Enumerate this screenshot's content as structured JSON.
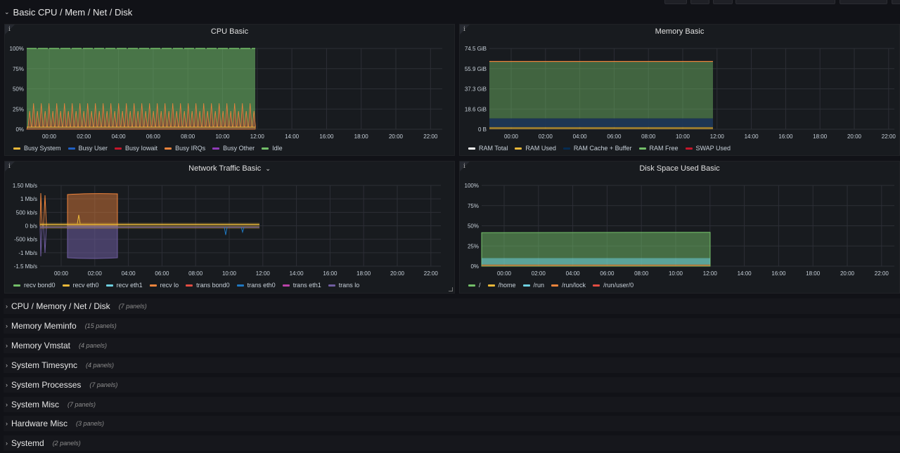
{
  "section": {
    "title": "Basic CPU / Mem / Net / Disk"
  },
  "x_ticks": [
    "00:00",
    "02:00",
    "04:00",
    "06:00",
    "08:00",
    "10:00",
    "12:00",
    "14:00",
    "16:00",
    "18:00",
    "20:00",
    "22:00"
  ],
  "panels": {
    "cpu": {
      "title": "CPU Basic",
      "y_ticks": [
        "100%",
        "75%",
        "50%",
        "25%",
        "0%"
      ],
      "legend": [
        {
          "label": "Busy System",
          "color": "#eab839"
        },
        {
          "label": "Busy User",
          "color": "#1f60c4"
        },
        {
          "label": "Busy Iowait",
          "color": "#c4162a"
        },
        {
          "label": "Busy IRQs",
          "color": "#ef843c"
        },
        {
          "label": "Busy Other",
          "color": "#8f3bb8"
        },
        {
          "label": "Idle",
          "color": "#73bf69"
        }
      ]
    },
    "memory": {
      "title": "Memory Basic",
      "y_ticks": [
        "74.5 GiB",
        "55.9 GiB",
        "37.3 GiB",
        "18.6 GiB",
        "0 B"
      ],
      "legend": [
        {
          "label": "RAM Total",
          "color": "#ffffff"
        },
        {
          "label": "RAM Used",
          "color": "#eab839"
        },
        {
          "label": "RAM Cache + Buffer",
          "color": "#052b51"
        },
        {
          "label": "RAM Free",
          "color": "#73bf69"
        },
        {
          "label": "SWAP Used",
          "color": "#c4162a"
        }
      ]
    },
    "network": {
      "title": "Network Traffic Basic",
      "y_ticks": [
        "1.50 Mb/s",
        "1 Mb/s",
        "500 kb/s",
        "0 b/s",
        "-500 kb/s",
        "-1 Mb/s",
        "-1.5 Mb/s"
      ],
      "legend": [
        {
          "label": "recv bond0",
          "color": "#73bf69"
        },
        {
          "label": "recv eth0",
          "color": "#eab839"
        },
        {
          "label": "recv eth1",
          "color": "#6ed0e0"
        },
        {
          "label": "recv lo",
          "color": "#ef843c"
        },
        {
          "label": "trans bond0",
          "color": "#e24d42"
        },
        {
          "label": "trans eth0",
          "color": "#1f78c1"
        },
        {
          "label": "trans eth1",
          "color": "#ba43a9"
        },
        {
          "label": "trans lo",
          "color": "#705da0"
        }
      ]
    },
    "disk": {
      "title": "Disk Space Used Basic",
      "y_ticks": [
        "100%",
        "75%",
        "50%",
        "25%",
        "0%"
      ],
      "legend": [
        {
          "label": "/",
          "color": "#73bf69"
        },
        {
          "label": "/home",
          "color": "#eab839"
        },
        {
          "label": "/run",
          "color": "#6ed0e0"
        },
        {
          "label": "/run/lock",
          "color": "#ef843c"
        },
        {
          "label": "/run/user/0",
          "color": "#e24d42"
        }
      ]
    }
  },
  "rows": [
    {
      "title": "CPU / Memory / Net / Disk",
      "count": "(7 panels)"
    },
    {
      "title": "Memory Meminfo",
      "count": "(15 panels)"
    },
    {
      "title": "Memory Vmstat",
      "count": "(4 panels)"
    },
    {
      "title": "System Timesync",
      "count": "(4 panels)"
    },
    {
      "title": "System Processes",
      "count": "(7 panels)"
    },
    {
      "title": "System Misc",
      "count": "(7 panels)"
    },
    {
      "title": "Hardware Misc",
      "count": "(3 panels)"
    },
    {
      "title": "Systemd",
      "count": "(2 panels)"
    }
  ]
}
